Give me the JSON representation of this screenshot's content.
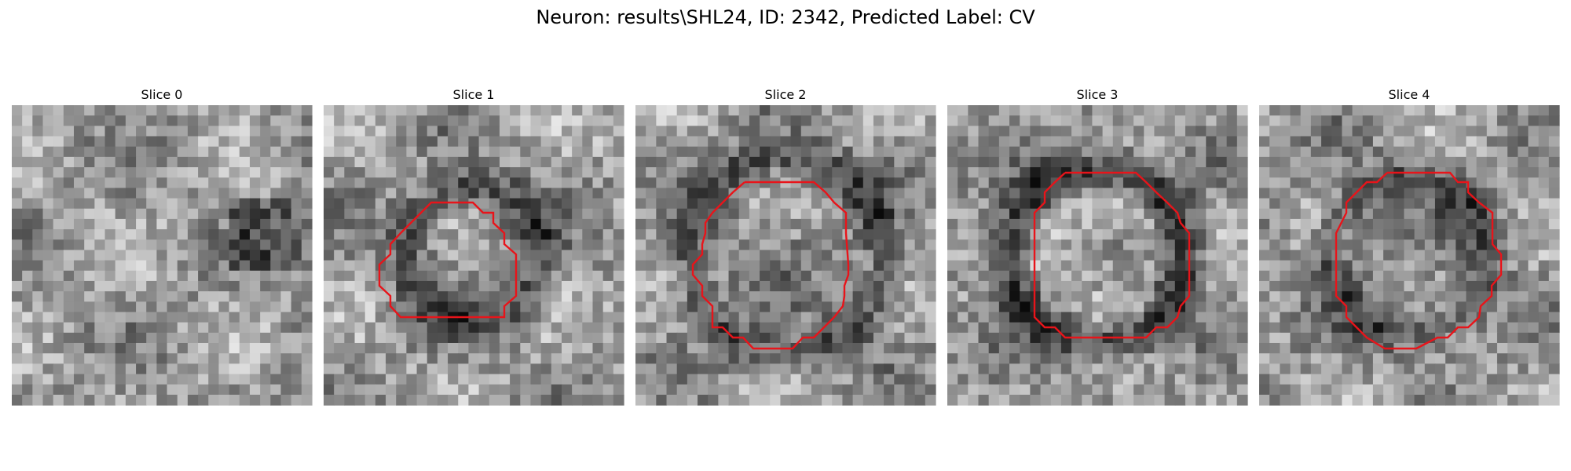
{
  "figure": {
    "title": "Neuron: results\\SHL24, ID: 2342, Predicted Label: CV",
    "background": "#ffffff"
  },
  "panels": [
    {
      "title": "Slice 0"
    },
    {
      "title": "Slice 1"
    },
    {
      "title": "Slice 2"
    },
    {
      "title": "Slice 3"
    },
    {
      "title": "Slice 4"
    }
  ],
  "style": {
    "colormap": "grayscale",
    "contour_color": "#e8141a"
  }
}
